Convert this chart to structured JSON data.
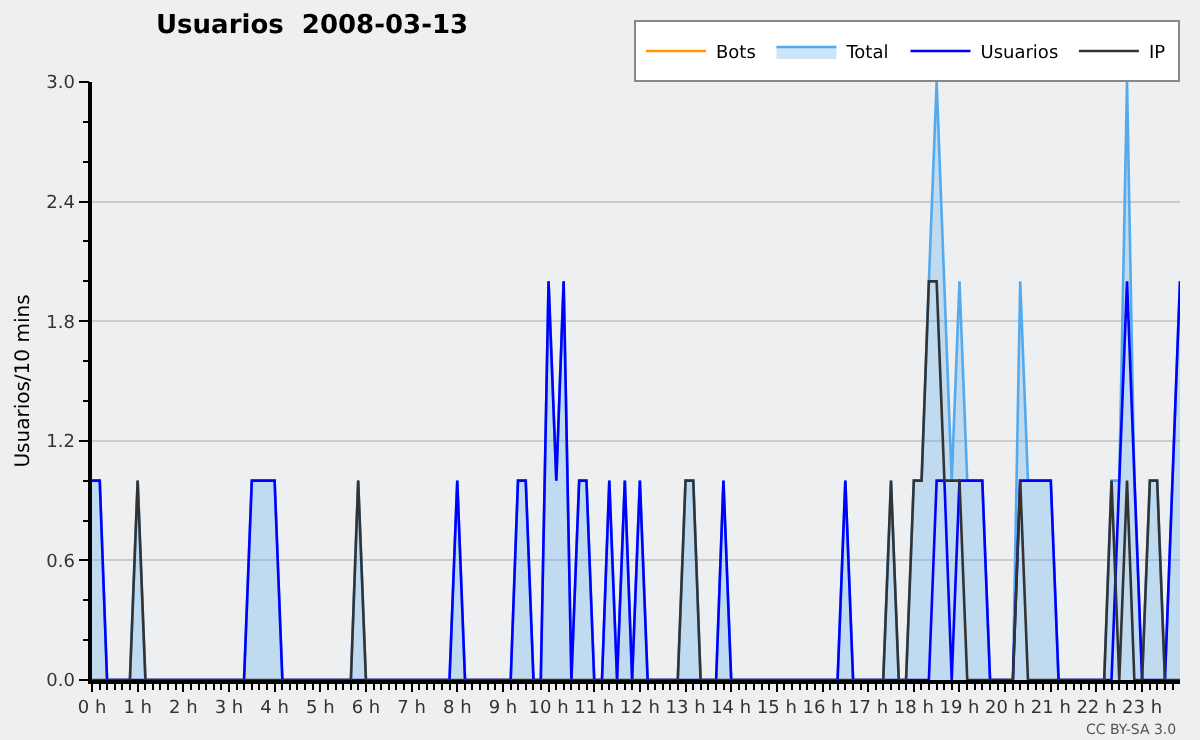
{
  "chart_data": {
    "type": "line",
    "title": "Usuarios  2008-03-13",
    "ylabel": "Usuarios/10 mins",
    "xlim": [
      0,
      23.83
    ],
    "ylim": [
      0,
      3
    ],
    "xticks": [
      {
        "value": 0,
        "label": "0 h"
      },
      {
        "value": 1,
        "label": "1 h"
      },
      {
        "value": 2,
        "label": "2 h"
      },
      {
        "value": 3,
        "label": "3 h"
      },
      {
        "value": 4,
        "label": "4 h"
      },
      {
        "value": 5,
        "label": "5 h"
      },
      {
        "value": 6,
        "label": "6 h"
      },
      {
        "value": 7,
        "label": "7 h"
      },
      {
        "value": 8,
        "label": "8 h"
      },
      {
        "value": 9,
        "label": "9 h"
      },
      {
        "value": 10,
        "label": "10 h"
      },
      {
        "value": 11,
        "label": "11 h"
      },
      {
        "value": 12,
        "label": "12 h"
      },
      {
        "value": 13,
        "label": "13 h"
      },
      {
        "value": 14,
        "label": "14 h"
      },
      {
        "value": 15,
        "label": "15 h"
      },
      {
        "value": 16,
        "label": "16 h"
      },
      {
        "value": 17,
        "label": "17 h"
      },
      {
        "value": 18,
        "label": "18 h"
      },
      {
        "value": 19,
        "label": "19 h"
      },
      {
        "value": 20,
        "label": "20 h"
      },
      {
        "value": 21,
        "label": "21 h"
      },
      {
        "value": 22,
        "label": "22 h"
      },
      {
        "value": 23,
        "label": "23 h"
      }
    ],
    "yticks": [
      {
        "value": 0,
        "label": "0.0"
      },
      {
        "value": 0.6,
        "label": "0.6"
      },
      {
        "value": 1.2,
        "label": "1.2"
      },
      {
        "value": 1.8,
        "label": "1.8"
      },
      {
        "value": 2.4,
        "label": "2.4"
      },
      {
        "value": 3,
        "label": "3.0"
      }
    ],
    "grid": "y",
    "legend": "top right",
    "marker": "none",
    "annotations": [
      "CC BY-SA 3.0"
    ],
    "series": [
      {
        "name": "Bots",
        "color": "#ff9900"
      },
      {
        "name": "Total",
        "color": "#55aaee",
        "type": "area",
        "x": [
          0,
          0.17,
          0.33,
          0.83,
          1,
          1.17,
          3.33,
          3.5,
          4,
          4.17,
          5.67,
          5.83,
          6,
          7.83,
          8,
          8.17,
          9.17,
          9.33,
          9.5,
          9.67,
          9.83,
          10,
          10.17,
          10.33,
          10.5,
          10.67,
          10.83,
          11,
          11.17,
          11.33,
          11.5,
          11.67,
          11.83,
          12,
          12.17,
          12.83,
          13,
          13.17,
          13.33,
          13.67,
          13.83,
          14,
          16.33,
          16.5,
          16.67,
          17.33,
          17.5,
          17.67,
          17.83,
          18,
          18.17,
          18.33,
          18.5,
          18.83,
          19,
          19.17,
          19.5,
          19.67,
          20.17,
          20.33,
          20.5,
          21,
          21.17,
          22.17,
          22.33,
          22.5,
          22.67,
          22.83,
          23,
          23.17,
          23.33,
          23.5,
          23.83
        ],
        "values": [
          1,
          1,
          0,
          0,
          1,
          0,
          0,
          1,
          1,
          0,
          0,
          1,
          0,
          0,
          1,
          0,
          0,
          1,
          1,
          0,
          0,
          2,
          1,
          2,
          0,
          1,
          1,
          0,
          0,
          1,
          0,
          1,
          0,
          1,
          0,
          0,
          1,
          1,
          0,
          0,
          1,
          0,
          0,
          1,
          0,
          0,
          1,
          0,
          0,
          1,
          1,
          2,
          3,
          1,
          2,
          1,
          1,
          0,
          0,
          2,
          1,
          1,
          0,
          0,
          1,
          1,
          3,
          1,
          0,
          1,
          1,
          0,
          2
        ]
      },
      {
        "name": "Usuarios",
        "color": "#0000ff",
        "x": [
          0,
          0.17,
          0.33,
          3.33,
          3.5,
          4,
          4.17,
          7.83,
          8,
          8.17,
          9.17,
          9.33,
          9.5,
          9.67,
          9.83,
          10,
          10.17,
          10.33,
          10.5,
          10.67,
          10.83,
          11,
          11.17,
          11.33,
          11.5,
          11.67,
          11.83,
          12,
          12.17,
          13.67,
          13.83,
          14,
          16.33,
          16.5,
          16.67,
          18.33,
          18.5,
          18.67,
          18.83,
          19,
          19.5,
          19.67,
          20.17,
          20.33,
          21,
          21.17,
          22.33,
          22.5,
          22.67,
          23,
          23.5,
          23.83
        ],
        "values": [
          1,
          1,
          0,
          0,
          1,
          1,
          0,
          0,
          1,
          0,
          0,
          1,
          1,
          0,
          0,
          2,
          1,
          2,
          0,
          1,
          1,
          0,
          0,
          1,
          0,
          1,
          0,
          1,
          0,
          0,
          1,
          0,
          0,
          1,
          0,
          0,
          1,
          1,
          0,
          1,
          1,
          0,
          0,
          1,
          1,
          0,
          0,
          1,
          2,
          0,
          0,
          2
        ]
      },
      {
        "name": "IP",
        "color": "#333333",
        "x": [
          0,
          0.83,
          1,
          1.17,
          5.67,
          5.83,
          6,
          12.83,
          13,
          13.17,
          13.33,
          17.33,
          17.5,
          17.67,
          17.83,
          18,
          18.17,
          18.33,
          18.5,
          18.67,
          19,
          19.17,
          20.17,
          20.33,
          20.5,
          22.17,
          22.33,
          22.5,
          22.67,
          22.83,
          23,
          23.17,
          23.33,
          23.5,
          23.83
        ],
        "values": [
          0,
          0,
          1,
          0,
          0,
          1,
          0,
          0,
          1,
          1,
          0,
          0,
          1,
          0,
          0,
          1,
          1,
          2,
          2,
          1,
          1,
          0,
          0,
          1,
          0,
          0,
          1,
          0,
          1,
          0,
          0,
          1,
          1,
          0,
          0
        ]
      }
    ]
  }
}
